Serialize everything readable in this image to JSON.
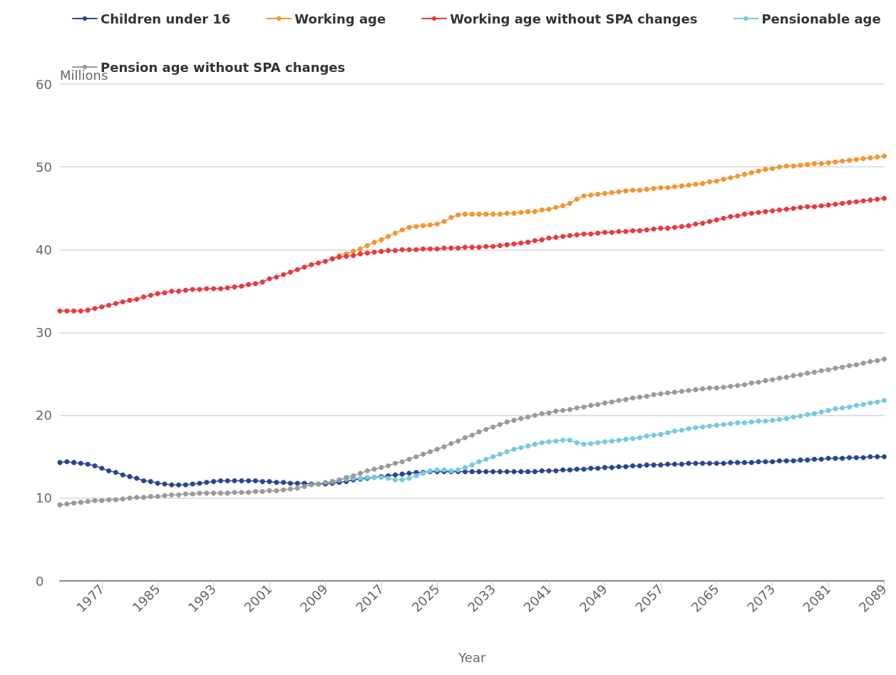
{
  "chart_data": {
    "type": "line",
    "xlabel": "Year",
    "ylabel": "Millions",
    "legend": "top",
    "grid": "y",
    "marker": "circle",
    "line_style": "solid",
    "x": [
      1971,
      1972,
      1973,
      1974,
      1975,
      1976,
      1977,
      1978,
      1979,
      1980,
      1981,
      1982,
      1983,
      1984,
      1985,
      1986,
      1987,
      1988,
      1989,
      1990,
      1991,
      1992,
      1993,
      1994,
      1995,
      1996,
      1997,
      1998,
      1999,
      2000,
      2001,
      2002,
      2003,
      2004,
      2005,
      2006,
      2007,
      2008,
      2009,
      2010,
      2011,
      2012,
      2013,
      2014,
      2015,
      2016,
      2017,
      2018,
      2019,
      2020,
      2021,
      2022,
      2023,
      2024,
      2025,
      2026,
      2027,
      2028,
      2029,
      2030,
      2031,
      2032,
      2033,
      2034,
      2035,
      2036,
      2037,
      2038,
      2039,
      2040,
      2041,
      2042,
      2043,
      2044,
      2045,
      2046,
      2047,
      2048,
      2049,
      2050,
      2051,
      2052,
      2053,
      2054,
      2055,
      2056,
      2057,
      2058,
      2059,
      2060,
      2061,
      2062,
      2063,
      2064,
      2065,
      2066,
      2067,
      2068,
      2069,
      2070,
      2071,
      2072,
      2073,
      2074,
      2075,
      2076,
      2077,
      2078,
      2079,
      2080,
      2081,
      2082,
      2083,
      2084,
      2085,
      2086,
      2087,
      2088,
      2089
    ],
    "xlim": [
      1971,
      2089
    ],
    "xticks": [
      1977,
      1985,
      1993,
      2001,
      2009,
      2017,
      2025,
      2033,
      2041,
      2049,
      2057,
      2065,
      2073,
      2081,
      2089
    ],
    "ylim": [
      0,
      60
    ],
    "yticks": [
      0,
      10,
      20,
      30,
      40,
      50,
      60
    ],
    "series": [
      {
        "name": "Children under 16",
        "color": "#2a4494",
        "values": [
          14.3,
          14.4,
          14.3,
          14.2,
          14.1,
          13.9,
          13.6,
          13.3,
          13.1,
          12.8,
          12.6,
          12.4,
          12.1,
          12.0,
          11.8,
          11.7,
          11.6,
          11.6,
          11.6,
          11.7,
          11.8,
          11.9,
          12.0,
          12.1,
          12.1,
          12.1,
          12.1,
          12.1,
          12.1,
          12.0,
          12.0,
          11.9,
          11.9,
          11.8,
          11.8,
          11.8,
          11.7,
          11.7,
          11.7,
          11.8,
          11.9,
          12.0,
          12.2,
          12.3,
          12.4,
          12.5,
          12.6,
          12.7,
          12.8,
          12.9,
          13.0,
          13.1,
          13.1,
          13.2,
          13.2,
          13.2,
          13.2,
          13.2,
          13.2,
          13.2,
          13.2,
          13.2,
          13.2,
          13.2,
          13.2,
          13.2,
          13.2,
          13.2,
          13.2,
          13.3,
          13.3,
          13.3,
          13.4,
          13.4,
          13.5,
          13.5,
          13.6,
          13.6,
          13.7,
          13.7,
          13.8,
          13.8,
          13.9,
          13.9,
          14.0,
          14.0,
          14.0,
          14.1,
          14.1,
          14.1,
          14.2,
          14.2,
          14.2,
          14.2,
          14.2,
          14.2,
          14.3,
          14.3,
          14.3,
          14.3,
          14.4,
          14.4,
          14.4,
          14.5,
          14.5,
          14.5,
          14.6,
          14.6,
          14.7,
          14.7,
          14.8,
          14.8,
          14.8,
          14.9,
          14.9,
          14.9,
          15.0,
          15.0,
          15.0
        ]
      },
      {
        "name": "Working age",
        "color": "#f39530",
        "values": [
          null,
          null,
          null,
          null,
          null,
          null,
          null,
          null,
          null,
          null,
          null,
          null,
          null,
          null,
          null,
          null,
          null,
          null,
          null,
          null,
          null,
          null,
          null,
          null,
          null,
          null,
          null,
          null,
          null,
          null,
          null,
          null,
          null,
          null,
          null,
          null,
          null,
          null,
          null,
          38.9,
          39.3,
          39.5,
          39.8,
          40.1,
          40.5,
          40.9,
          41.2,
          41.6,
          42.0,
          42.4,
          42.7,
          42.8,
          42.9,
          43.0,
          43.1,
          43.4,
          43.9,
          44.2,
          44.3,
          44.3,
          44.3,
          44.3,
          44.3,
          44.3,
          44.4,
          44.4,
          44.5,
          44.6,
          44.6,
          44.8,
          44.9,
          45.1,
          45.3,
          45.6,
          46.1,
          46.5,
          46.6,
          46.7,
          46.8,
          46.9,
          47.0,
          47.1,
          47.2,
          47.2,
          47.3,
          47.4,
          47.5,
          47.5,
          47.6,
          47.7,
          47.8,
          47.9,
          48.0,
          48.2,
          48.3,
          48.5,
          48.7,
          48.9,
          49.1,
          49.3,
          49.5,
          49.7,
          49.8,
          50.0,
          50.1,
          50.1,
          50.2,
          50.3,
          50.4,
          50.4,
          50.5,
          50.6,
          50.7,
          50.8,
          50.9,
          51.0,
          51.1,
          51.2,
          51.3
        ]
      },
      {
        "name": "Working age without SPA changes",
        "color": "#e8393f",
        "values": [
          32.6,
          32.6,
          32.6,
          32.6,
          32.7,
          32.9,
          33.1,
          33.3,
          33.5,
          33.7,
          33.9,
          34.0,
          34.3,
          34.5,
          34.7,
          34.8,
          35.0,
          35.0,
          35.1,
          35.2,
          35.2,
          35.3,
          35.3,
          35.3,
          35.4,
          35.5,
          35.6,
          35.8,
          35.9,
          36.1,
          36.5,
          36.7,
          37.0,
          37.3,
          37.6,
          37.9,
          38.2,
          38.4,
          38.6,
          38.9,
          39.1,
          39.2,
          39.3,
          39.5,
          39.6,
          39.7,
          39.8,
          39.9,
          39.9,
          40.0,
          40.0,
          40.0,
          40.1,
          40.1,
          40.1,
          40.2,
          40.2,
          40.2,
          40.3,
          40.3,
          40.3,
          40.4,
          40.4,
          40.5,
          40.6,
          40.7,
          40.8,
          40.9,
          41.1,
          41.2,
          41.4,
          41.5,
          41.6,
          41.7,
          41.8,
          41.9,
          41.9,
          42.0,
          42.1,
          42.1,
          42.2,
          42.2,
          42.3,
          42.3,
          42.4,
          42.5,
          42.6,
          42.6,
          42.7,
          42.8,
          42.9,
          43.1,
          43.2,
          43.4,
          43.6,
          43.8,
          44.0,
          44.1,
          44.3,
          44.4,
          44.5,
          44.6,
          44.7,
          44.8,
          44.9,
          45.0,
          45.1,
          45.2,
          45.2,
          45.3,
          45.4,
          45.5,
          45.6,
          45.7,
          45.8,
          45.9,
          46.0,
          46.1,
          46.2
        ]
      },
      {
        "name": "Pensionable age",
        "color": "#76c9e0",
        "values": [
          null,
          null,
          null,
          null,
          null,
          null,
          null,
          null,
          null,
          null,
          null,
          null,
          null,
          null,
          null,
          null,
          null,
          null,
          null,
          null,
          null,
          null,
          null,
          null,
          null,
          null,
          null,
          null,
          null,
          null,
          null,
          null,
          null,
          null,
          null,
          null,
          null,
          null,
          null,
          12.0,
          12.2,
          12.3,
          12.4,
          12.4,
          12.5,
          12.5,
          12.5,
          12.4,
          12.2,
          12.2,
          12.4,
          12.7,
          13.0,
          13.3,
          13.4,
          13.4,
          13.3,
          13.4,
          13.7,
          14.0,
          14.4,
          14.7,
          15.0,
          15.3,
          15.6,
          15.9,
          16.1,
          16.3,
          16.5,
          16.7,
          16.8,
          16.9,
          17.0,
          17.0,
          16.7,
          16.5,
          16.6,
          16.7,
          16.8,
          16.9,
          17.0,
          17.1,
          17.2,
          17.3,
          17.5,
          17.6,
          17.7,
          17.9,
          18.1,
          18.2,
          18.4,
          18.5,
          18.6,
          18.7,
          18.8,
          18.9,
          19.0,
          19.1,
          19.1,
          19.2,
          19.3,
          19.3,
          19.4,
          19.5,
          19.6,
          19.8,
          19.9,
          20.1,
          20.2,
          20.4,
          20.6,
          20.8,
          20.9,
          21.0,
          21.2,
          21.3,
          21.5,
          21.6,
          21.8
        ]
      },
      {
        "name": "Pension age without SPA changes",
        "color": "#9a9a9a",
        "values": [
          9.2,
          9.3,
          9.4,
          9.5,
          9.6,
          9.7,
          9.7,
          9.8,
          9.8,
          9.9,
          10.0,
          10.1,
          10.1,
          10.2,
          10.2,
          10.3,
          10.4,
          10.4,
          10.5,
          10.5,
          10.6,
          10.6,
          10.6,
          10.6,
          10.6,
          10.7,
          10.7,
          10.7,
          10.8,
          10.8,
          10.9,
          10.9,
          11.0,
          11.1,
          11.2,
          11.4,
          11.6,
          11.7,
          11.9,
          12.0,
          12.2,
          12.5,
          12.7,
          13.0,
          13.3,
          13.5,
          13.7,
          13.9,
          14.2,
          14.4,
          14.7,
          15.0,
          15.3,
          15.6,
          15.9,
          16.2,
          16.6,
          16.9,
          17.3,
          17.6,
          18.0,
          18.3,
          18.6,
          18.9,
          19.2,
          19.4,
          19.6,
          19.8,
          20.0,
          20.2,
          20.3,
          20.5,
          20.6,
          20.7,
          20.9,
          21.0,
          21.2,
          21.3,
          21.5,
          21.6,
          21.8,
          21.9,
          22.1,
          22.2,
          22.3,
          22.5,
          22.6,
          22.7,
          22.8,
          22.9,
          23.0,
          23.1,
          23.2,
          23.3,
          23.3,
          23.4,
          23.5,
          23.6,
          23.7,
          23.9,
          24.0,
          24.2,
          24.3,
          24.5,
          24.6,
          24.8,
          24.9,
          25.1,
          25.2,
          25.4,
          25.5,
          25.7,
          25.8,
          26.0,
          26.1,
          26.3,
          26.5,
          26.6,
          26.8
        ]
      }
    ]
  }
}
